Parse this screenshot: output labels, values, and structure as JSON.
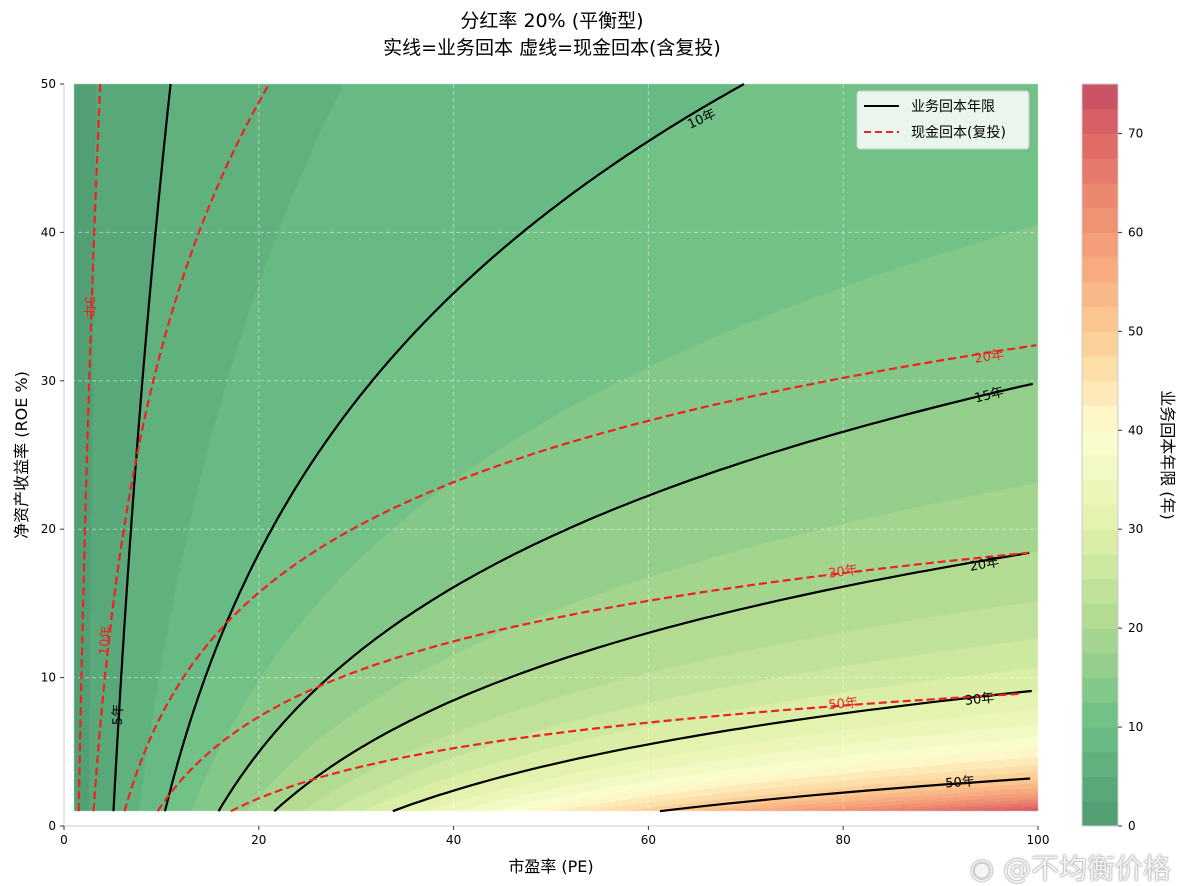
{
  "title_line1": "分红率 20% (平衡型)",
  "title_line2": "实线=业务回本  虚线=现金回本(含复投)",
  "watermark": "@不均衡价格",
  "chart_data": {
    "type": "contour",
    "payout_ratio": 0.2,
    "xlabel": "市盈率 (PE)",
    "ylabel": "净资产收益率 (ROE %)",
    "xlim": [
      0,
      100
    ],
    "ylim": [
      0,
      50
    ],
    "data_x_range": [
      1,
      100
    ],
    "data_y_range": [
      1,
      50
    ],
    "xticks": [
      "0",
      "20",
      "40",
      "60",
      "80",
      "100"
    ],
    "yticks": [
      "0",
      "10",
      "20",
      "30",
      "40",
      "50"
    ],
    "grid": true,
    "fill": {
      "quantity": "业务回本年限",
      "levels_step": 2.5,
      "range": [
        0,
        75
      ],
      "colormap": "RdYlGn_r",
      "colorbar_label": "业务回本年限 (年)",
      "colorbar_ticks": [
        "0",
        "10",
        "20",
        "30",
        "40",
        "50",
        "60",
        "70"
      ]
    },
    "series": [
      {
        "name": "业务回本年限",
        "style": "solid",
        "color": "#000000",
        "levels": [
          5,
          10,
          15,
          20,
          30,
          50
        ],
        "labels": [
          "5年",
          "10年",
          "15年",
          "20年",
          "30年",
          "50年"
        ]
      },
      {
        "name": "现金回本(复投)",
        "style": "dashed",
        "color": "#ee2222",
        "levels": [
          5,
          10,
          20,
          30,
          50
        ],
        "labels": [
          "5年",
          "10年",
          "20年",
          "30年",
          "50年"
        ]
      }
    ],
    "legend": "top-right"
  }
}
